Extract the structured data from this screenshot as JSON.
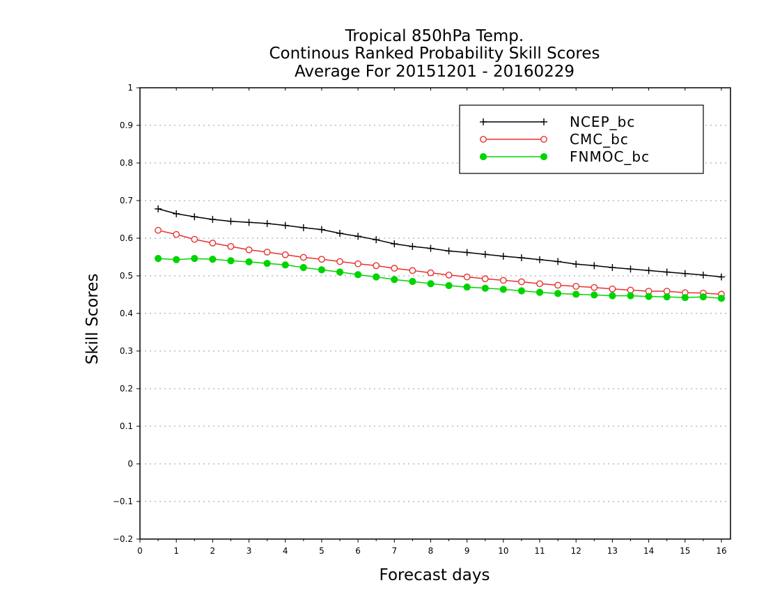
{
  "chart_data": {
    "type": "line",
    "title": [
      "Tropical 850hPa Temp.",
      "Continous Ranked Probability Skill Scores",
      "Average For 20151201 - 20160229"
    ],
    "xlabel": "Forecast days",
    "ylabel": "Skill Scores",
    "xlim": [
      0,
      16.25
    ],
    "ylim": [
      -0.2,
      1
    ],
    "xticks": [
      "0",
      "1",
      "2",
      "3",
      "4",
      "5",
      "6",
      "7",
      "8",
      "9",
      "10",
      "11",
      "12",
      "13",
      "14",
      "15",
      "16"
    ],
    "yticks": [
      "−0.2",
      "−0.1",
      "0",
      "0.1",
      "0.2",
      "0.3",
      "0.4",
      "0.5",
      "0.6",
      "0.7",
      "0.8",
      "0.9",
      "1"
    ],
    "grid": "horizontal dotted",
    "legend_position": "top-right",
    "x": [
      0.5,
      1,
      1.5,
      2,
      2.5,
      3,
      3.5,
      4,
      4.5,
      5,
      5.5,
      6,
      6.5,
      7,
      7.5,
      8,
      8.5,
      9,
      9.5,
      10,
      10.5,
      11,
      11.5,
      12,
      12.5,
      13,
      13.5,
      14,
      14.5,
      15,
      15.5,
      16
    ],
    "series": [
      {
        "name": "NCEP_bc",
        "color": "#000000",
        "marker": "plus",
        "values": [
          0.678,
          0.665,
          0.657,
          0.65,
          0.645,
          0.642,
          0.639,
          0.634,
          0.628,
          0.623,
          0.613,
          0.605,
          0.596,
          0.585,
          0.578,
          0.573,
          0.566,
          0.562,
          0.557,
          0.552,
          0.548,
          0.543,
          0.538,
          0.531,
          0.527,
          0.522,
          0.518,
          0.514,
          0.51,
          0.506,
          0.502,
          0.497
        ]
      },
      {
        "name": "CMC_bc",
        "color": "#e83030",
        "marker": "open-circle",
        "values": [
          0.621,
          0.61,
          0.597,
          0.587,
          0.578,
          0.569,
          0.563,
          0.556,
          0.549,
          0.544,
          0.538,
          0.532,
          0.527,
          0.52,
          0.514,
          0.508,
          0.502,
          0.497,
          0.492,
          0.488,
          0.484,
          0.479,
          0.475,
          0.472,
          0.469,
          0.465,
          0.462,
          0.459,
          0.459,
          0.455,
          0.454,
          0.451
        ]
      },
      {
        "name": "FNMOC_bc",
        "color": "#00d400",
        "marker": "filled-circle",
        "values": [
          0.546,
          0.543,
          0.546,
          0.544,
          0.54,
          0.537,
          0.533,
          0.529,
          0.522,
          0.516,
          0.51,
          0.503,
          0.497,
          0.49,
          0.485,
          0.479,
          0.474,
          0.47,
          0.467,
          0.464,
          0.46,
          0.456,
          0.453,
          0.451,
          0.449,
          0.447,
          0.447,
          0.445,
          0.444,
          0.442,
          0.444,
          0.44
        ]
      }
    ]
  }
}
